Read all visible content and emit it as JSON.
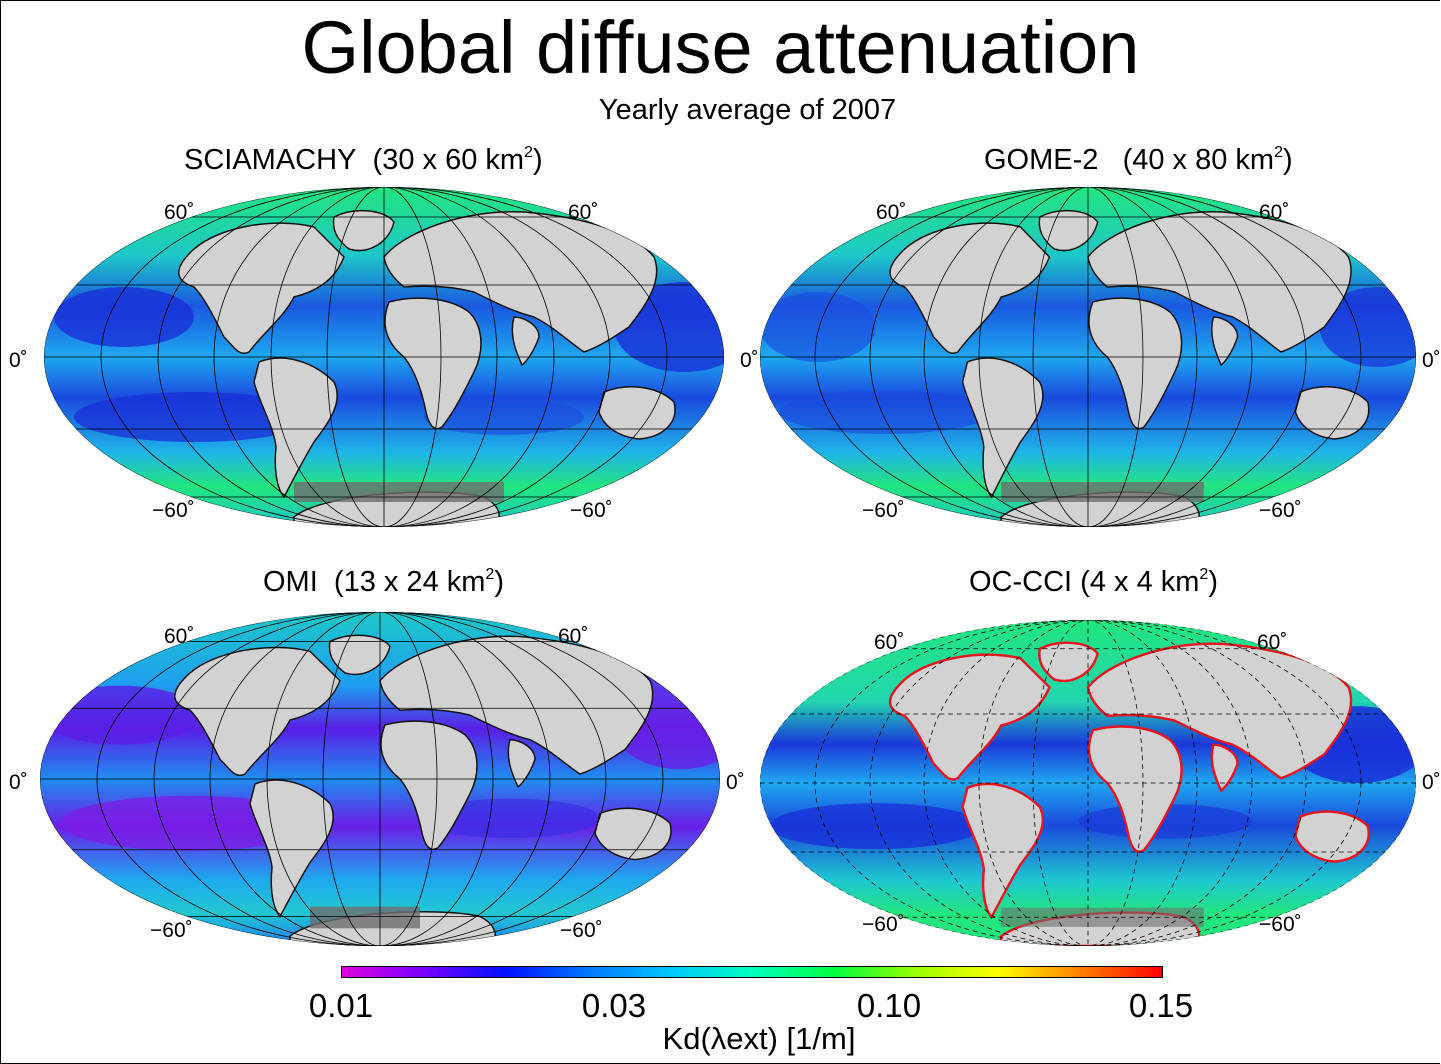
{
  "header": {
    "title": "Global diffuse attenuation",
    "subtitle": "Yearly average of 2007"
  },
  "panels": [
    {
      "name": "SCIAMACHY",
      "resolution": "(30 x 60 km",
      "sup": "2",
      "close": ")",
      "lat_north": "60˚",
      "lat_equator": "0˚",
      "lat_south": "−60˚"
    },
    {
      "name": "GOME-2",
      "resolution": "(40 x 80 km",
      "sup": "2",
      "close": ")",
      "lat_north": "60˚",
      "lat_equator": "0˚",
      "lat_south": "−60˚"
    },
    {
      "name": "OMI",
      "resolution": "(13 x 24 km",
      "sup": "2",
      "close": ")",
      "lat_north": "60˚",
      "lat_equator": "0˚",
      "lat_south": "−60˚"
    },
    {
      "name": "OC-CCI",
      "resolution": "(4 x 4 km",
      "sup": "2",
      "close": ")",
      "lat_north": "60˚",
      "lat_equator": "0˚",
      "lat_south": "−60˚"
    }
  ],
  "colorbar": {
    "ticks": [
      "0.01",
      "0.03",
      "0.10",
      "0.15"
    ],
    "label": "Kd(λext) [1/m]",
    "colors": [
      "#e000e0",
      "#7a00ff",
      "#0010ff",
      "#0077ff",
      "#00c8ff",
      "#00ffc0",
      "#00ff40",
      "#9aff00",
      "#ffff00",
      "#ff8000",
      "#ff0000"
    ]
  },
  "colors": {
    "land": "#d2d2d2",
    "ice": "#6e6e6e",
    "ocean_deep": "#1a2fd8",
    "ocean_mid": "#1ea8ef",
    "ocean_high": "#22e57e",
    "coast_bloom": "#e8141e"
  }
}
